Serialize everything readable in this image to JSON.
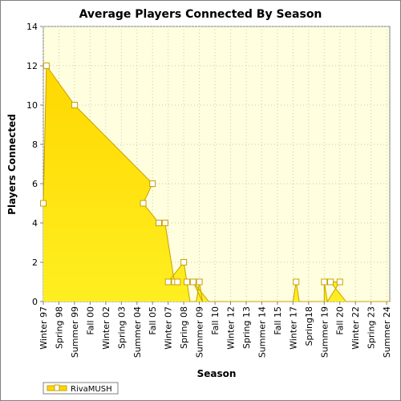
{
  "chart_data": {
    "type": "area",
    "title": "Average Players Connected By Season",
    "xlabel": "Season",
    "ylabel": "Players Connected",
    "ylim": [
      0,
      14
    ],
    "yticks": [
      0,
      2,
      4,
      6,
      8,
      10,
      12,
      14
    ],
    "grid": true,
    "legend_position": "bottom-left",
    "xtick_labels": [
      "Winter 97",
      "Spring 98",
      "Summer 99",
      "Fall 00",
      "Winter 02",
      "Spring 03",
      "Summer 04",
      "Fall 05",
      "Winter 07",
      "Spring 08",
      "Summer 09",
      "Fall 10",
      "Winter 12",
      "Spring 13",
      "Summer 14",
      "Fall 15",
      "Winter 17",
      "Spring18",
      "Summer 19",
      "Fall 20",
      "Winter 22",
      "Spring 23",
      "Summer 24"
    ],
    "x_start": "Winter 97",
    "x_end": "Fall 24",
    "series": [
      {
        "name": "RivaMUSH",
        "color": "#ffd700",
        "fill_top": "#ffd700",
        "fill_bottom": "#ffef20",
        "line_color": "#c8a000",
        "points": [
          {
            "x": "Winter 97",
            "y": 5
          },
          {
            "x": "Spring 97",
            "y": 12
          },
          {
            "x": "Summer 99",
            "y": 10
          },
          {
            "x": "Fall 05",
            "y": 6
          },
          {
            "x": "Winter 05",
            "y": 5
          },
          {
            "x": "Spring 06",
            "y": 4
          },
          {
            "x": "Fall 06",
            "y": 4
          },
          {
            "x": "Summer 07",
            "y": 1
          },
          {
            "x": "Fall 07",
            "y": 1
          },
          {
            "x": "Winter 07",
            "y": 1
          },
          {
            "x": "Spring 08",
            "y": 2
          },
          {
            "x": "Summer 08",
            "y": 1
          },
          {
            "x": "Fall 08",
            "y": 0
          },
          {
            "x": "Spring 09",
            "y": 0
          },
          {
            "x": "Summer 09",
            "y": 1
          },
          {
            "x": "Fall 09",
            "y": 0
          },
          {
            "x": "Winter 09",
            "y": 1
          },
          {
            "x": "Spring 10",
            "y": 0
          },
          {
            "x": "Winter 17",
            "y": 0
          },
          {
            "x": "Spring 17",
            "y": 1
          },
          {
            "x": "Summer 17",
            "y": 0
          },
          {
            "x": "Summer 19",
            "y": 0
          },
          {
            "x": "Summer 19",
            "y": 1
          },
          {
            "x": "Fall 19",
            "y": 0
          },
          {
            "x": "Fall 20",
            "y": 1
          },
          {
            "x": "Winter 20",
            "y": 1
          },
          {
            "x": "Spring 21",
            "y": 0
          },
          {
            "x": "Fall 24",
            "y": 0
          }
        ],
        "markers": [
          {
            "x": "Winter 97",
            "y": 5
          },
          {
            "x": "Spring 97",
            "y": 12
          },
          {
            "x": "Summer 99",
            "y": 10
          },
          {
            "x": "Fall 05",
            "y": 6
          },
          {
            "x": "Winter 05",
            "y": 5
          },
          {
            "x": "Spring 06",
            "y": 4
          },
          {
            "x": "Fall 06",
            "y": 4
          },
          {
            "x": "Summer 07",
            "y": 1
          },
          {
            "x": "Fall 07",
            "y": 1
          },
          {
            "x": "Winter 07",
            "y": 1
          },
          {
            "x": "Spring 08",
            "y": 2
          },
          {
            "x": "Summer 08",
            "y": 1
          },
          {
            "x": "Summer 09",
            "y": 1
          },
          {
            "x": "Winter 09",
            "y": 1
          },
          {
            "x": "Spring 17",
            "y": 1
          },
          {
            "x": "Summer 19",
            "y": 1
          },
          {
            "x": "Fall 20",
            "y": 1
          },
          {
            "x": "Winter 20",
            "y": 1
          }
        ]
      }
    ]
  }
}
